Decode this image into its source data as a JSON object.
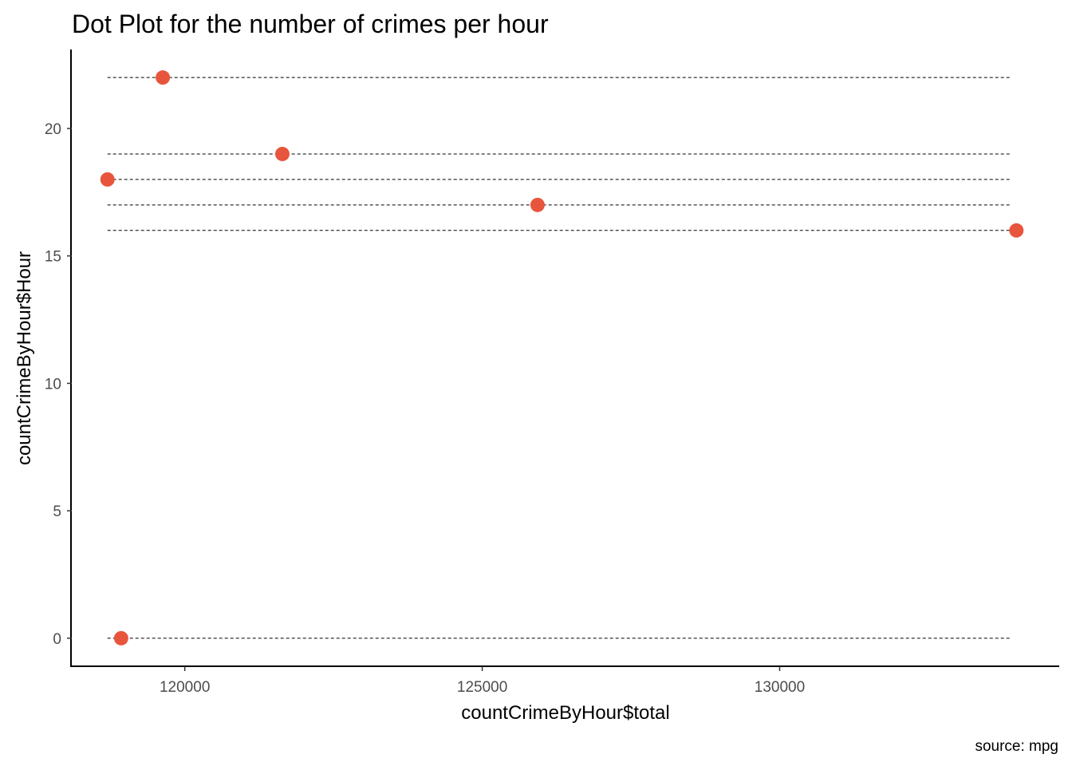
{
  "chart_data": {
    "type": "scatter",
    "title": "Dot Plot for the number of crimes per hour",
    "xlabel": "countCrimeByHour$total",
    "ylabel": "countCrimeByHour$Hour",
    "caption": "source: mpg",
    "xlim": [
      118100,
      134700
    ],
    "ylim": [
      -1.1,
      23.1
    ],
    "x_ticks": [
      120000,
      125000,
      130000
    ],
    "x_tick_labels": [
      "120000",
      "125000",
      "130000"
    ],
    "y_ticks": [
      0,
      5,
      10,
      15,
      20
    ],
    "y_tick_labels": [
      "0",
      "5",
      "10",
      "15",
      "20"
    ],
    "grid": false,
    "point_color": "#E8553D",
    "segment_color": "#000000",
    "segment_style": "dashed",
    "segments": {
      "x_start": 118700,
      "x_end": 133900
    },
    "points": [
      {
        "x": 118930,
        "y": 0
      },
      {
        "x": 133980,
        "y": 16
      },
      {
        "x": 125930,
        "y": 17
      },
      {
        "x": 118700,
        "y": 18
      },
      {
        "x": 121640,
        "y": 19
      },
      {
        "x": 119630,
        "y": 22
      }
    ]
  }
}
